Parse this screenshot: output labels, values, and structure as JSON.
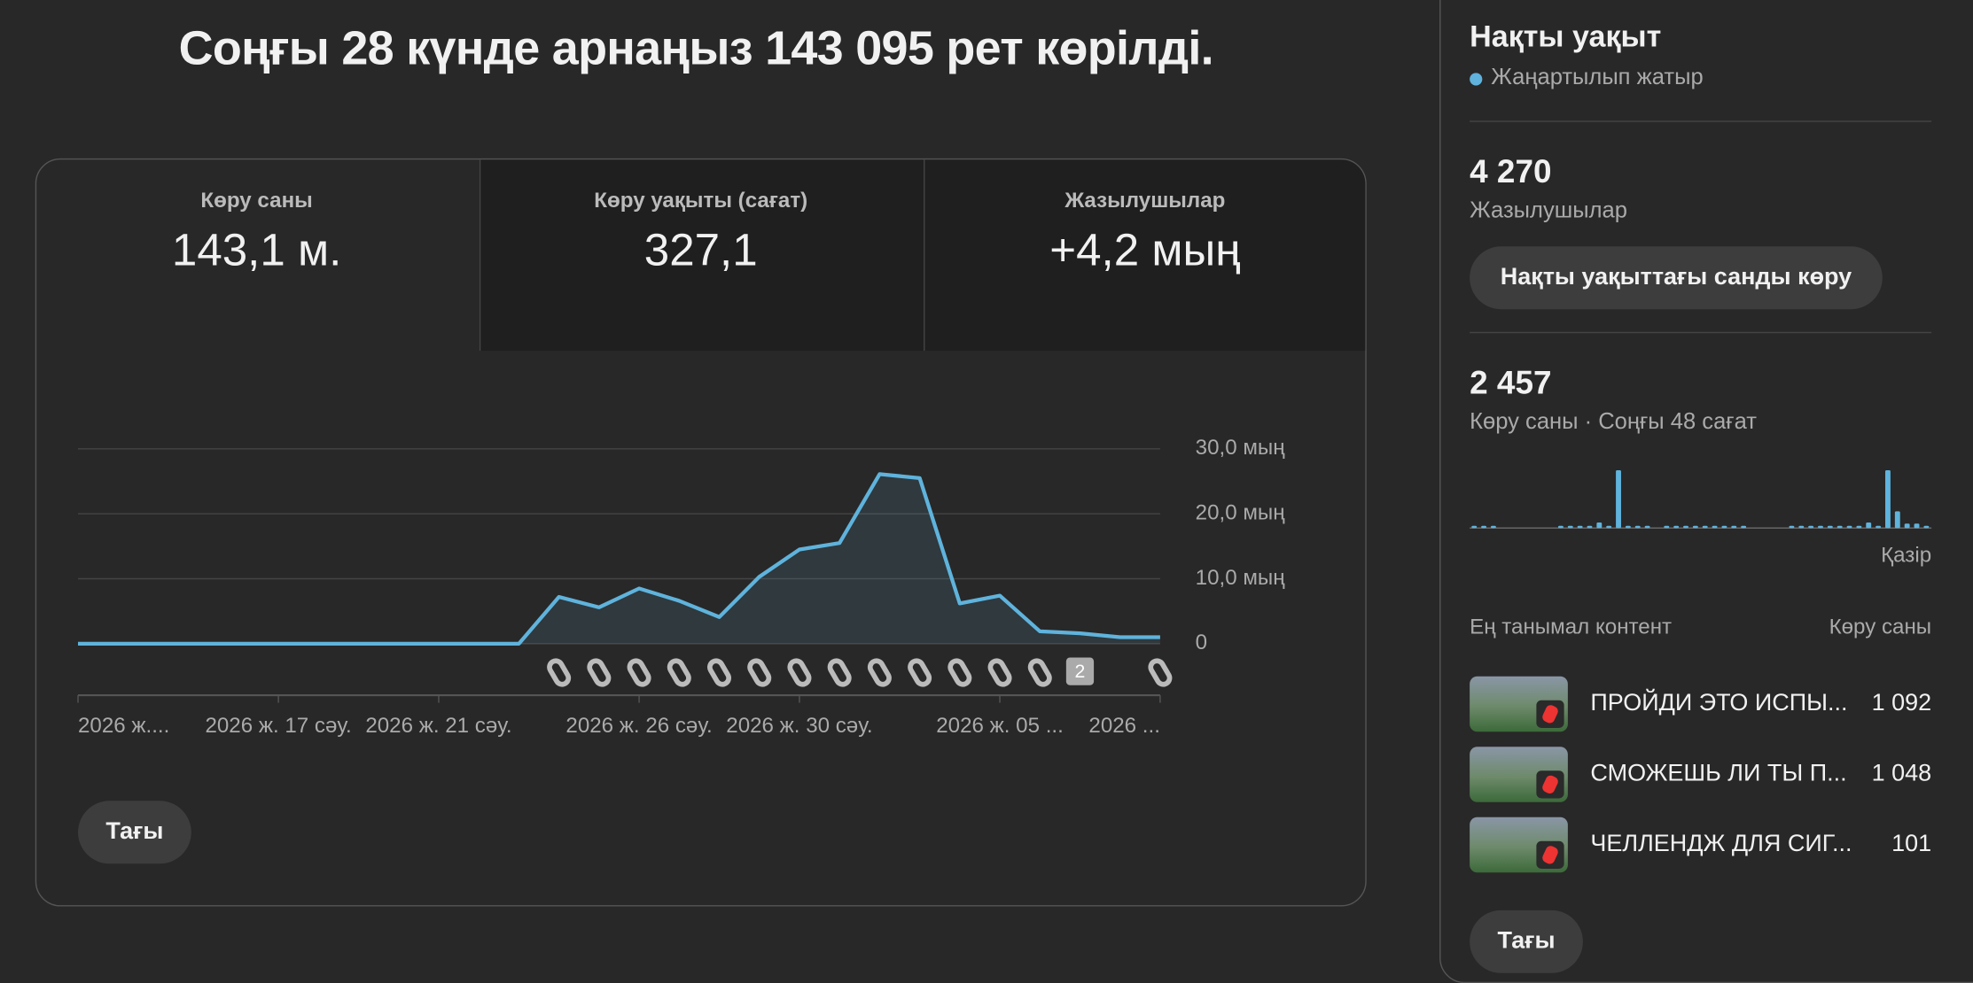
{
  "header": {
    "title": "Соңғы 28 күнде арнаңыз 143 095 рет көрілді."
  },
  "tabs": [
    {
      "label": "Көру саны",
      "value": "143,1 м."
    },
    {
      "label": "Көру уақыты (сағат)",
      "value": "327,1"
    },
    {
      "label": "Жазылушылар",
      "value": "+4,2 мың"
    }
  ],
  "chart_data": {
    "type": "line",
    "categories": [
      "2026 ж....",
      null,
      null,
      null,
      null,
      "2026 ж. 17 сәу.",
      null,
      null,
      null,
      "2026 ж. 21 сәу.",
      null,
      null,
      null,
      null,
      "2026 ж. 26 сәу.",
      null,
      null,
      null,
      "2026 ж. 30 сәу.",
      null,
      null,
      null,
      null,
      "2026 ж. 05 ...",
      null,
      null,
      null,
      "2026 ..."
    ],
    "values": [
      0,
      0,
      0,
      0,
      0,
      0,
      0,
      0,
      0,
      0,
      0,
      0,
      7200,
      5600,
      8500,
      6600,
      4100,
      10300,
      14500,
      15500,
      26100,
      25500,
      6200,
      7400,
      1900,
      1600,
      1000,
      1000
    ],
    "color": "#5fb3dc",
    "ylim": [
      0,
      30000
    ],
    "yticks": [
      0,
      {
        "value": 10000,
        "label": "10,0 мың"
      },
      {
        "value": 20000,
        "label": "20,0 мың"
      },
      {
        "value": 30000,
        "label": "30,0 мың"
      }
    ],
    "grid": true,
    "badge": "2"
  },
  "more_button": "Тағы",
  "realtime": {
    "title": "Нақты уақыт",
    "status": "Жаңартылып жатыр",
    "subscribers": {
      "value": "4 270",
      "label": "Жазылушылар"
    },
    "button": "Нақты уақыттағы санды көру",
    "views": {
      "value": "2 457",
      "label": "Көру саны · Соңғы 48 сағат"
    },
    "bars": [
      20,
      20,
      20,
      0,
      0,
      0,
      0,
      0,
      0,
      20,
      20,
      20,
      20,
      50,
      20,
      520,
      20,
      20,
      20,
      0,
      20,
      20,
      20,
      20,
      20,
      20,
      20,
      20,
      20,
      0,
      0,
      0,
      0,
      20,
      20,
      20,
      20,
      20,
      20,
      20,
      20,
      50,
      20,
      520,
      150,
      40,
      40,
      20
    ],
    "bars_color": "#5fb3dc",
    "now_label": "Қазір",
    "top_content": {
      "header": "Ең танымал контент",
      "column": "Көру саны",
      "rows": [
        {
          "title": "ПРОЙДИ ЭТО ИСПЫ...",
          "views": "1 092"
        },
        {
          "title": "СМОЖЕШЬ ЛИ ТЫ П...",
          "views": "1 048"
        },
        {
          "title": "ЧЕЛЛЕНДЖ ДЛЯ СИГ...",
          "views": "101"
        }
      ],
      "more": "Тағы"
    }
  }
}
